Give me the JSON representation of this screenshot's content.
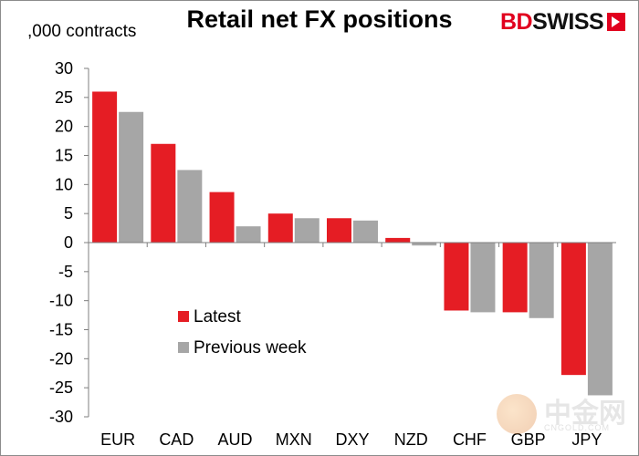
{
  "header": {
    "title": "Retail net FX positions",
    "unit": ",000 contracts"
  },
  "logo": {
    "part1": "BD",
    "part2": "SWISS",
    "icon": "chevron-arrow-icon",
    "color": "#e1001e"
  },
  "watermark": {
    "text": "中金网",
    "subtext": "CNGOLD.COM"
  },
  "chart_data": {
    "type": "bar",
    "title": "Retail net FX positions",
    "ylabel": ",000 contracts",
    "xlabel": "",
    "categories": [
      "EUR",
      "CAD",
      "AUD",
      "MXN",
      "DXY",
      "NZD",
      "CHF",
      "GBP",
      "JPY"
    ],
    "series": [
      {
        "name": "Latest",
        "color": "#e51d24",
        "values": [
          26.0,
          17.0,
          8.7,
          5.0,
          4.2,
          0.8,
          -11.7,
          -12.0,
          -22.8
        ]
      },
      {
        "name": "Previous week",
        "color": "#a6a6a6",
        "values": [
          22.5,
          12.5,
          2.8,
          4.2,
          3.8,
          -0.5,
          -12.0,
          -13.0,
          -26.3
        ]
      }
    ],
    "ylim": [
      -30,
      30
    ],
    "yticks": [
      30,
      25,
      20,
      15,
      10,
      5,
      0,
      -5,
      -10,
      -15,
      -20,
      -25,
      -30
    ],
    "grid": false,
    "legend_position": "center-left"
  }
}
